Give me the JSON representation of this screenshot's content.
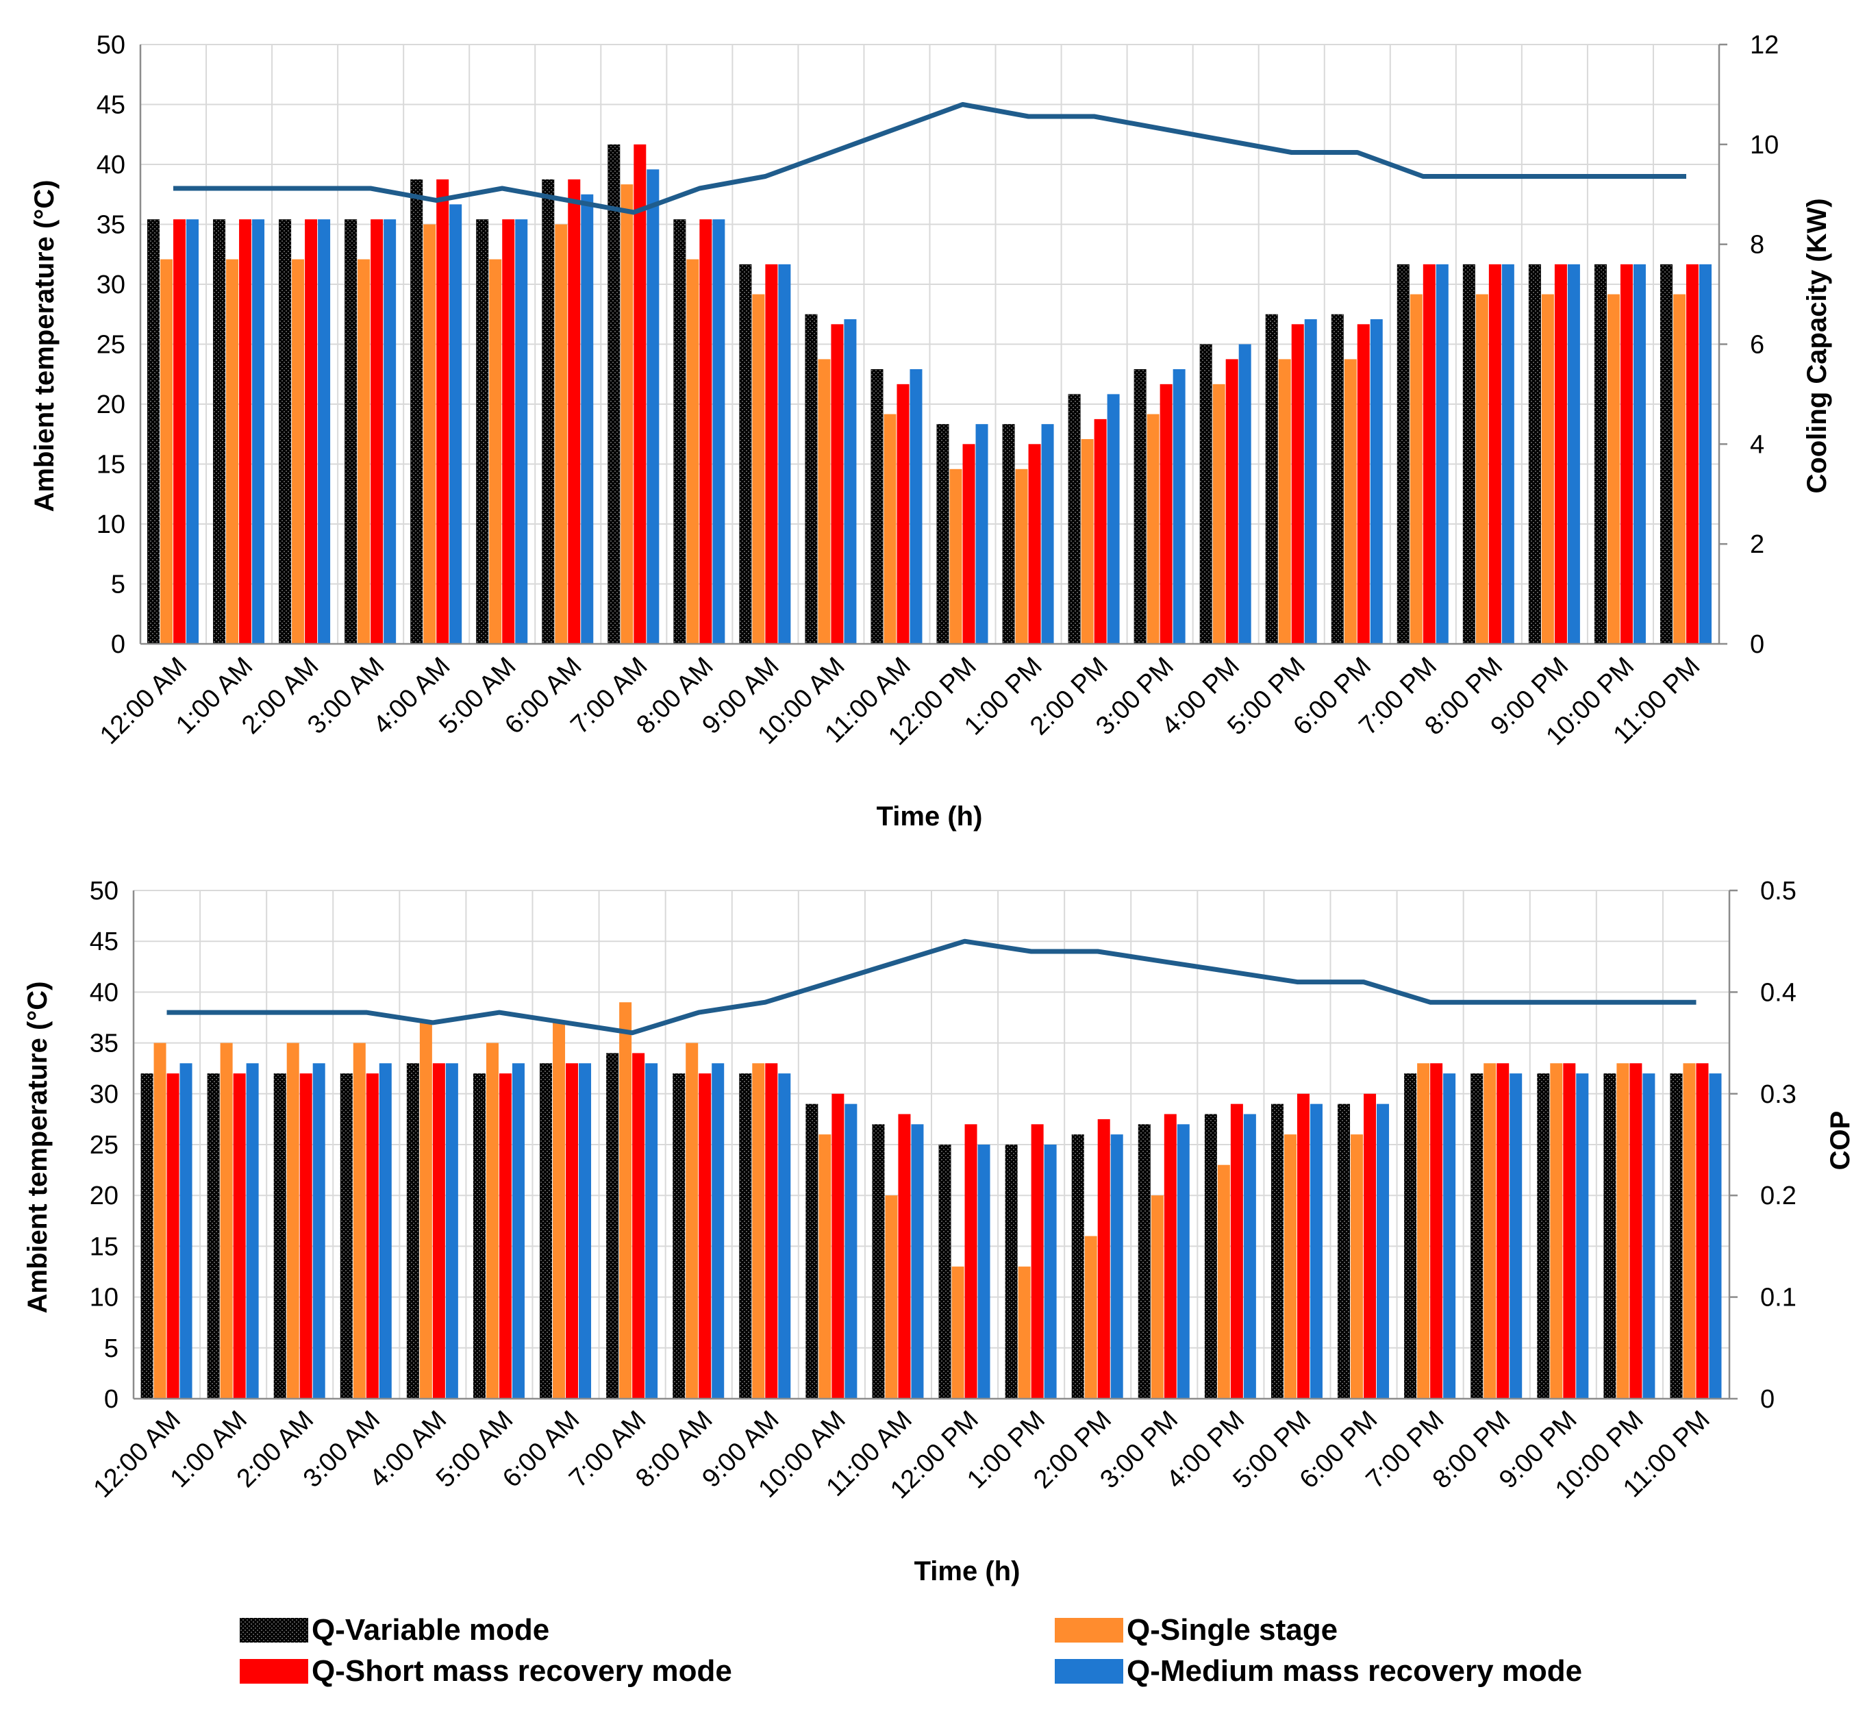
{
  "chart_data": [
    {
      "type": "bar+line",
      "title": "",
      "xlabel": "Time (h)",
      "ylabel": "Ambient temperature (°C)",
      "y2label": "Cooling Capacity (KW)",
      "ylim": [
        0,
        50
      ],
      "y2lim": [
        0,
        12
      ],
      "yticks": [
        "0",
        "5",
        "10",
        "15",
        "20",
        "25",
        "30",
        "35",
        "40",
        "45",
        "50"
      ],
      "y2ticks": [
        "0",
        "2",
        "4",
        "6",
        "8",
        "10",
        "12"
      ],
      "categories": [
        "12:00 AM",
        "1:00 AM",
        "2:00 AM",
        "3:00 AM",
        "4:00 AM",
        "5:00 AM",
        "6:00 AM",
        "7:00 AM",
        "8:00 AM",
        "9:00 AM",
        "10:00 AM",
        "11:00 AM",
        "12:00 PM",
        "1:00 PM",
        "2:00 PM",
        "3:00 PM",
        "4:00 PM",
        "5:00 PM",
        "6:00 PM",
        "7:00 PM",
        "8:00 PM",
        "9:00 PM",
        "10:00 PM",
        "11:00 PM"
      ],
      "series": [
        {
          "name": "Q-Variable mode",
          "axis": "y2",
          "color": "#000000",
          "values": [
            8.5,
            8.5,
            8.5,
            8.5,
            9.3,
            8.5,
            9.3,
            10.0,
            8.5,
            7.6,
            6.6,
            5.5,
            4.4,
            4.4,
            5.0,
            5.5,
            6.0,
            6.6,
            6.6,
            7.6,
            7.6,
            7.6,
            7.6,
            7.6
          ]
        },
        {
          "name": "Q-Single stage",
          "axis": "y2",
          "color": "#ff8c2e",
          "values": [
            7.7,
            7.7,
            7.7,
            7.7,
            8.4,
            7.7,
            8.4,
            9.2,
            7.7,
            7.0,
            5.7,
            4.6,
            3.5,
            3.5,
            4.1,
            4.6,
            5.2,
            5.7,
            5.7,
            7.0,
            7.0,
            7.0,
            7.0,
            7.0
          ]
        },
        {
          "name": "Q-Short mass recovery mode",
          "axis": "y2",
          "color": "#ff0000",
          "values": [
            8.5,
            8.5,
            8.5,
            8.5,
            9.3,
            8.5,
            9.3,
            10.0,
            8.5,
            7.6,
            6.4,
            5.2,
            4.0,
            4.0,
            4.5,
            5.2,
            5.7,
            6.4,
            6.4,
            7.6,
            7.6,
            7.6,
            7.6,
            7.6
          ]
        },
        {
          "name": "Q-Medium mass recovery mode",
          "axis": "y2",
          "color": "#1f78d1",
          "values": [
            8.5,
            8.5,
            8.5,
            8.5,
            8.8,
            8.5,
            9.0,
            9.5,
            8.5,
            7.6,
            6.5,
            5.5,
            4.4,
            4.4,
            5.0,
            5.5,
            6.0,
            6.5,
            6.5,
            7.6,
            7.6,
            7.6,
            7.6,
            7.6
          ]
        },
        {
          "name": "Ambient temperature",
          "axis": "y",
          "type": "line",
          "color": "#1f5c8c",
          "values": [
            38,
            38,
            38,
            38,
            37,
            38,
            37,
            36,
            38,
            39,
            41,
            43,
            45,
            44,
            44,
            43,
            42,
            41,
            41,
            39,
            39,
            39,
            39,
            39
          ]
        }
      ]
    },
    {
      "type": "bar+line",
      "title": "",
      "xlabel": "Time (h)",
      "ylabel": "Ambient temperature (°C)",
      "y2label": "COP",
      "ylim": [
        0,
        50
      ],
      "y2lim": [
        0,
        0.5
      ],
      "yticks": [
        "0",
        "5",
        "10",
        "15",
        "20",
        "25",
        "30",
        "35",
        "40",
        "45",
        "50"
      ],
      "y2ticks": [
        "0",
        "0.1",
        "0.2",
        "0.3",
        "0.4",
        "0.5"
      ],
      "categories": [
        "12:00 AM",
        "1:00 AM",
        "2:00 AM",
        "3:00 AM",
        "4:00 AM",
        "5:00 AM",
        "6:00 AM",
        "7:00 AM",
        "8:00 AM",
        "9:00 AM",
        "10:00 AM",
        "11:00 AM",
        "12:00 PM",
        "1:00 PM",
        "2:00 PM",
        "3:00 PM",
        "4:00 PM",
        "5:00 PM",
        "6:00 PM",
        "7:00 PM",
        "8:00 PM",
        "9:00 PM",
        "10:00 PM",
        "11:00 PM"
      ],
      "series": [
        {
          "name": "Q-Variable mode",
          "axis": "y2",
          "color": "#000000",
          "values": [
            0.32,
            0.32,
            0.32,
            0.32,
            0.33,
            0.32,
            0.33,
            0.34,
            0.32,
            0.32,
            0.29,
            0.27,
            0.25,
            0.25,
            0.26,
            0.27,
            0.28,
            0.29,
            0.29,
            0.32,
            0.32,
            0.32,
            0.32,
            0.32
          ]
        },
        {
          "name": "Q-Single stage",
          "axis": "y2",
          "color": "#ff8c2e",
          "values": [
            0.35,
            0.35,
            0.35,
            0.35,
            0.37,
            0.35,
            0.37,
            0.39,
            0.35,
            0.33,
            0.26,
            0.2,
            0.13,
            0.13,
            0.16,
            0.2,
            0.23,
            0.26,
            0.26,
            0.33,
            0.33,
            0.33,
            0.33,
            0.33
          ]
        },
        {
          "name": "Q-Short mass recovery mode",
          "axis": "y2",
          "color": "#ff0000",
          "values": [
            0.32,
            0.32,
            0.32,
            0.32,
            0.33,
            0.32,
            0.33,
            0.34,
            0.32,
            0.33,
            0.3,
            0.28,
            0.27,
            0.27,
            0.275,
            0.28,
            0.29,
            0.3,
            0.3,
            0.33,
            0.33,
            0.33,
            0.33,
            0.33
          ]
        },
        {
          "name": "Q-Medium mass recovery mode",
          "axis": "y2",
          "color": "#1f78d1",
          "values": [
            0.33,
            0.33,
            0.33,
            0.33,
            0.33,
            0.33,
            0.33,
            0.33,
            0.33,
            0.32,
            0.29,
            0.27,
            0.25,
            0.25,
            0.26,
            0.27,
            0.28,
            0.29,
            0.29,
            0.32,
            0.32,
            0.32,
            0.32,
            0.32
          ]
        },
        {
          "name": "Ambient temperature",
          "axis": "y",
          "type": "line",
          "color": "#1f5c8c",
          "values": [
            38,
            38,
            38,
            38,
            37,
            38,
            37,
            36,
            38,
            39,
            41,
            43,
            45,
            44,
            44,
            43,
            42,
            41,
            41,
            39,
            39,
            39,
            39,
            39
          ]
        }
      ]
    }
  ],
  "legend": {
    "items": [
      {
        "label": "Q-Variable mode",
        "color": "#000000"
      },
      {
        "label": "Q-Single stage",
        "color": "#ff8c2e"
      },
      {
        "label": "Q-Short mass recovery mode",
        "color": "#ff0000"
      },
      {
        "label": "Q-Medium mass recovery mode",
        "color": "#1f78d1"
      }
    ]
  }
}
